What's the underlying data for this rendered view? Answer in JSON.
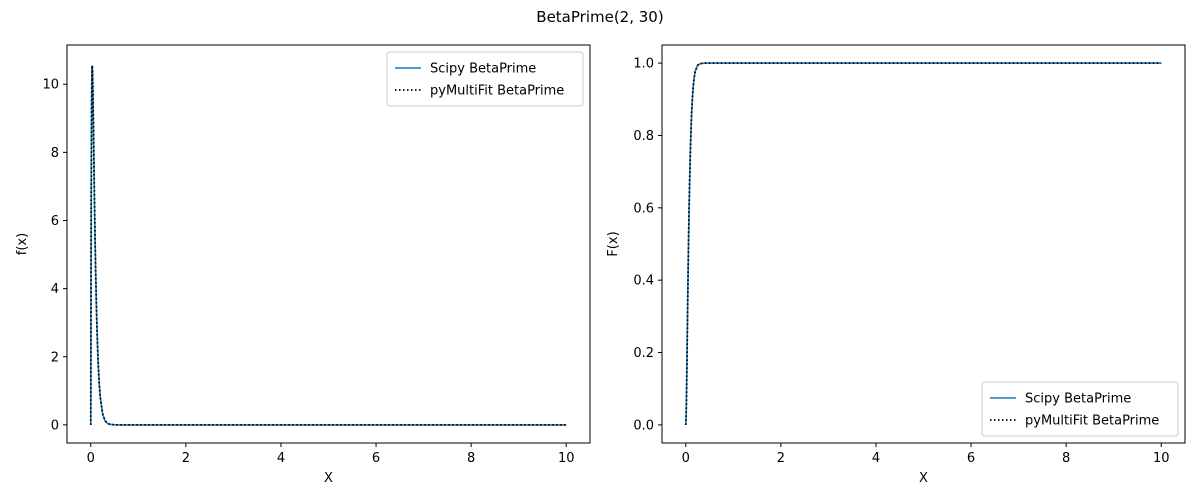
{
  "figure": {
    "title": "BetaPrime(2, 30)"
  },
  "colors": {
    "scipy": "#1f77b4",
    "pymultifit": "#000000"
  },
  "chart_data": [
    {
      "type": "line",
      "xlabel": "X",
      "ylabel": "f(x)",
      "xlim": [
        -0.5,
        10.5
      ],
      "ylim": [
        -0.531,
        11.151
      ],
      "xticks": [
        0,
        2,
        4,
        6,
        8,
        10
      ],
      "yticks": [
        0,
        2,
        4,
        6,
        8,
        10
      ],
      "grid": false,
      "legend": {
        "placement": "upper-right",
        "entries": [
          "Scipy BetaPrime",
          "pyMultiFit BetaPrime"
        ]
      },
      "series": [
        {
          "name": "Scipy BetaPrime",
          "style": "solid",
          "x": [
            0,
            0.005,
            0.01,
            0.015,
            0.02,
            0.025,
            0.03,
            0.035,
            0.04,
            0.045,
            0.05,
            0.06,
            0.07,
            0.08,
            0.09,
            0.1,
            0.12,
            0.14,
            0.16,
            0.18,
            0.2,
            0.25,
            0.3,
            0.35,
            0.4,
            0.5,
            0.6,
            0.8,
            1.0,
            1.5,
            2,
            3,
            4,
            5,
            6,
            7,
            8,
            9,
            10
          ],
          "y": [
            0,
            4.11,
            6.93,
            8.76,
            9.85,
            10.39,
            10.55,
            10.45,
            10.18,
            9.8,
            9.35,
            8.36,
            7.34,
            6.37,
            5.49,
            4.7,
            3.38,
            2.4,
            1.68,
            1.17,
            0.81,
            0.32,
            0.12,
            0.047,
            0.018,
            0.003,
            0.0004,
            0,
            0,
            0,
            0,
            0,
            0,
            0,
            0,
            0,
            0,
            0,
            0
          ]
        },
        {
          "name": "pyMultiFit BetaPrime",
          "style": "dotted",
          "x": [
            0,
            0.005,
            0.01,
            0.015,
            0.02,
            0.025,
            0.03,
            0.035,
            0.04,
            0.045,
            0.05,
            0.06,
            0.07,
            0.08,
            0.09,
            0.1,
            0.12,
            0.14,
            0.16,
            0.18,
            0.2,
            0.25,
            0.3,
            0.35,
            0.4,
            0.5,
            0.6,
            0.8,
            1.0,
            1.5,
            2,
            3,
            4,
            5,
            6,
            7,
            8,
            9,
            10
          ],
          "y": [
            0,
            4.11,
            6.93,
            8.76,
            9.85,
            10.39,
            10.55,
            10.45,
            10.18,
            9.8,
            9.35,
            8.36,
            7.34,
            6.37,
            5.49,
            4.7,
            3.38,
            2.4,
            1.68,
            1.17,
            0.81,
            0.32,
            0.12,
            0.047,
            0.018,
            0.003,
            0.0004,
            0,
            0,
            0,
            0,
            0,
            0,
            0,
            0,
            0,
            0,
            0,
            0
          ]
        }
      ]
    },
    {
      "type": "line",
      "xlabel": "X",
      "ylabel": "F(x)",
      "xlim": [
        -0.5,
        10.5
      ],
      "ylim": [
        -0.05,
        1.05
      ],
      "xticks": [
        0,
        2,
        4,
        6,
        8,
        10
      ],
      "yticks": [
        0.0,
        0.2,
        0.4,
        0.6,
        0.8,
        1.0
      ],
      "ytick_labels": [
        "0.0",
        "0.2",
        "0.4",
        "0.6",
        "0.8",
        "1.0"
      ],
      "grid": false,
      "legend": {
        "placement": "lower-right",
        "entries": [
          "Scipy BetaPrime",
          "pyMultiFit BetaPrime"
        ]
      },
      "series": [
        {
          "name": "Scipy BetaPrime",
          "style": "solid",
          "x": [
            0,
            0.005,
            0.01,
            0.015,
            0.02,
            0.025,
            0.03,
            0.04,
            0.05,
            0.06,
            0.07,
            0.08,
            0.1,
            0.12,
            0.14,
            0.16,
            0.18,
            0.2,
            0.25,
            0.3,
            0.35,
            0.4,
            0.5,
            0.6,
            0.8,
            1.0,
            1.5,
            2,
            3,
            4,
            5,
            6,
            7,
            8,
            9,
            10
          ],
          "y": [
            0,
            0.011,
            0.04,
            0.079,
            0.126,
            0.177,
            0.229,
            0.333,
            0.432,
            0.52,
            0.598,
            0.666,
            0.774,
            0.852,
            0.905,
            0.94,
            0.963,
            0.978,
            0.994,
            0.998,
            0.9995,
            0.9999,
            1.0,
            1.0,
            1.0,
            1.0,
            1.0,
            1.0,
            1.0,
            1.0,
            1.0,
            1.0,
            1.0,
            1.0,
            1.0,
            1.0
          ]
        },
        {
          "name": "pyMultiFit BetaPrime",
          "style": "dotted",
          "x": [
            0,
            0.005,
            0.01,
            0.015,
            0.02,
            0.025,
            0.03,
            0.04,
            0.05,
            0.06,
            0.07,
            0.08,
            0.1,
            0.12,
            0.14,
            0.16,
            0.18,
            0.2,
            0.25,
            0.3,
            0.35,
            0.4,
            0.5,
            0.6,
            0.8,
            1.0,
            1.5,
            2,
            3,
            4,
            5,
            6,
            7,
            8,
            9,
            10
          ],
          "y": [
            0,
            0.011,
            0.04,
            0.079,
            0.126,
            0.177,
            0.229,
            0.333,
            0.432,
            0.52,
            0.598,
            0.666,
            0.774,
            0.852,
            0.905,
            0.94,
            0.963,
            0.978,
            0.994,
            0.998,
            0.9995,
            0.9999,
            1.0,
            1.0,
            1.0,
            1.0,
            1.0,
            1.0,
            1.0,
            1.0,
            1.0,
            1.0,
            1.0,
            1.0,
            1.0,
            1.0
          ]
        }
      ]
    }
  ]
}
